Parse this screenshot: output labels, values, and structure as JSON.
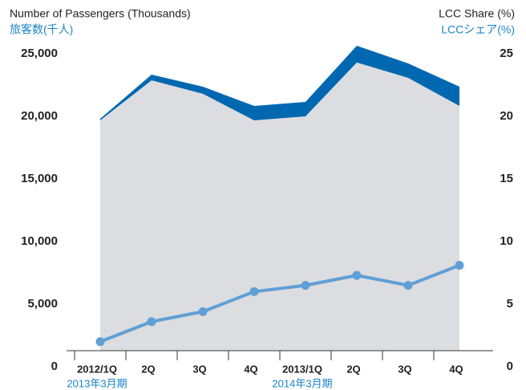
{
  "chart_data": {
    "type": "area_line",
    "y_label": "Number of Passengers (Thousands)",
    "y_label_ja": "旅客数(千人)",
    "y2_label": "LCC Share (%)",
    "y2_label_ja": "LCCシェア(%)",
    "categories": [
      "2012/1Q",
      "2Q",
      "3Q",
      "4Q",
      "2013/1Q",
      "2Q",
      "3Q",
      "4Q"
    ],
    "annotations": [
      {
        "category": 0,
        "text": "2013年3月期"
      },
      {
        "category": 4,
        "text": "2014年3月期"
      }
    ],
    "series": [
      {
        "color": "#dcdde0",
        "values": [
          19680,
          22880,
          21800,
          19680,
          20000,
          24300,
          23080,
          20830
        ]
      },
      {
        "color": "#0068b0",
        "values": [
          130,
          450,
          570,
          1150,
          1150,
          1340,
          1150,
          1540
        ]
      },
      {
        "color": "#5f9fd6",
        "axis": "y2",
        "values": [
          2.0,
          3.6,
          4.4,
          6.0,
          6.5,
          7.3,
          6.5,
          8.1
        ]
      }
    ],
    "ylim": [
      0,
      25700
    ],
    "yticks": [
      {
        "value": 0,
        "label": "0"
      },
      {
        "value": 5000,
        "label": "5,000"
      },
      {
        "value": 10000,
        "label": "10,000"
      },
      {
        "value": 15000,
        "label": "15,000"
      },
      {
        "value": 20000,
        "label": "20,000"
      },
      {
        "value": 25000,
        "label": "25,000"
      }
    ],
    "y2lim": [
      0,
      25.7
    ],
    "y2ticks": [
      0,
      5,
      10,
      15,
      20,
      25
    ]
  }
}
